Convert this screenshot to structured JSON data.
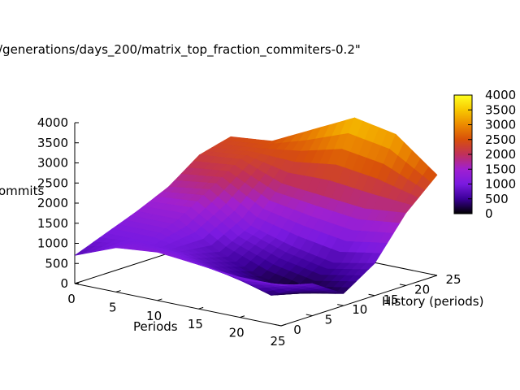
{
  "chart_data": {
    "type": "surface",
    "title": "/generations/days_200/matrix_top_fraction_commiters-0.2\"",
    "xlabel": "Periods",
    "ylabel": "History (periods)",
    "zlabel": "ommits",
    "xlim": [
      0,
      25
    ],
    "ylim": [
      0,
      25
    ],
    "zlim": [
      0,
      4000
    ],
    "x_ticks": [
      "0",
      "5",
      "10",
      "15",
      "20",
      "25"
    ],
    "y_ticks": [
      "0",
      "5",
      "10",
      "15",
      "20",
      "25"
    ],
    "z_ticks": [
      "0",
      "500",
      "1000",
      "1500",
      "2000",
      "2500",
      "3000",
      "3500",
      "4000"
    ],
    "colorbar": {
      "range": [
        0,
        4000
      ],
      "ticks": [
        "0",
        "500",
        "1000",
        "1500",
        "2000",
        "2500",
        "3000",
        "3500",
        "4000"
      ],
      "palette": [
        "#000000",
        "#3b0098",
        "#7a1ae0",
        "#a020d0",
        "#c0305a",
        "#d8500a",
        "#ec8a00",
        "#f8c800",
        "#ffff20"
      ]
    },
    "grid": false,
    "x_values": [
      0,
      5,
      10,
      15,
      20,
      25
    ],
    "y_values": [
      0,
      5,
      10,
      15,
      20,
      25
    ],
    "z_values": [
      [
        700,
        1000,
        1300,
        1650,
        2200,
        2400
      ],
      [
        1100,
        1000,
        1300,
        1800,
        2300,
        2500
      ],
      [
        1200,
        900,
        700,
        1100,
        1900,
        3000
      ],
      [
        1100,
        600,
        300,
        800,
        1800,
        3500
      ],
      [
        1000,
        300,
        100,
        600,
        1700,
        3300
      ],
      [
        1000,
        800,
        300,
        800,
        1800,
        2500
      ]
    ]
  }
}
